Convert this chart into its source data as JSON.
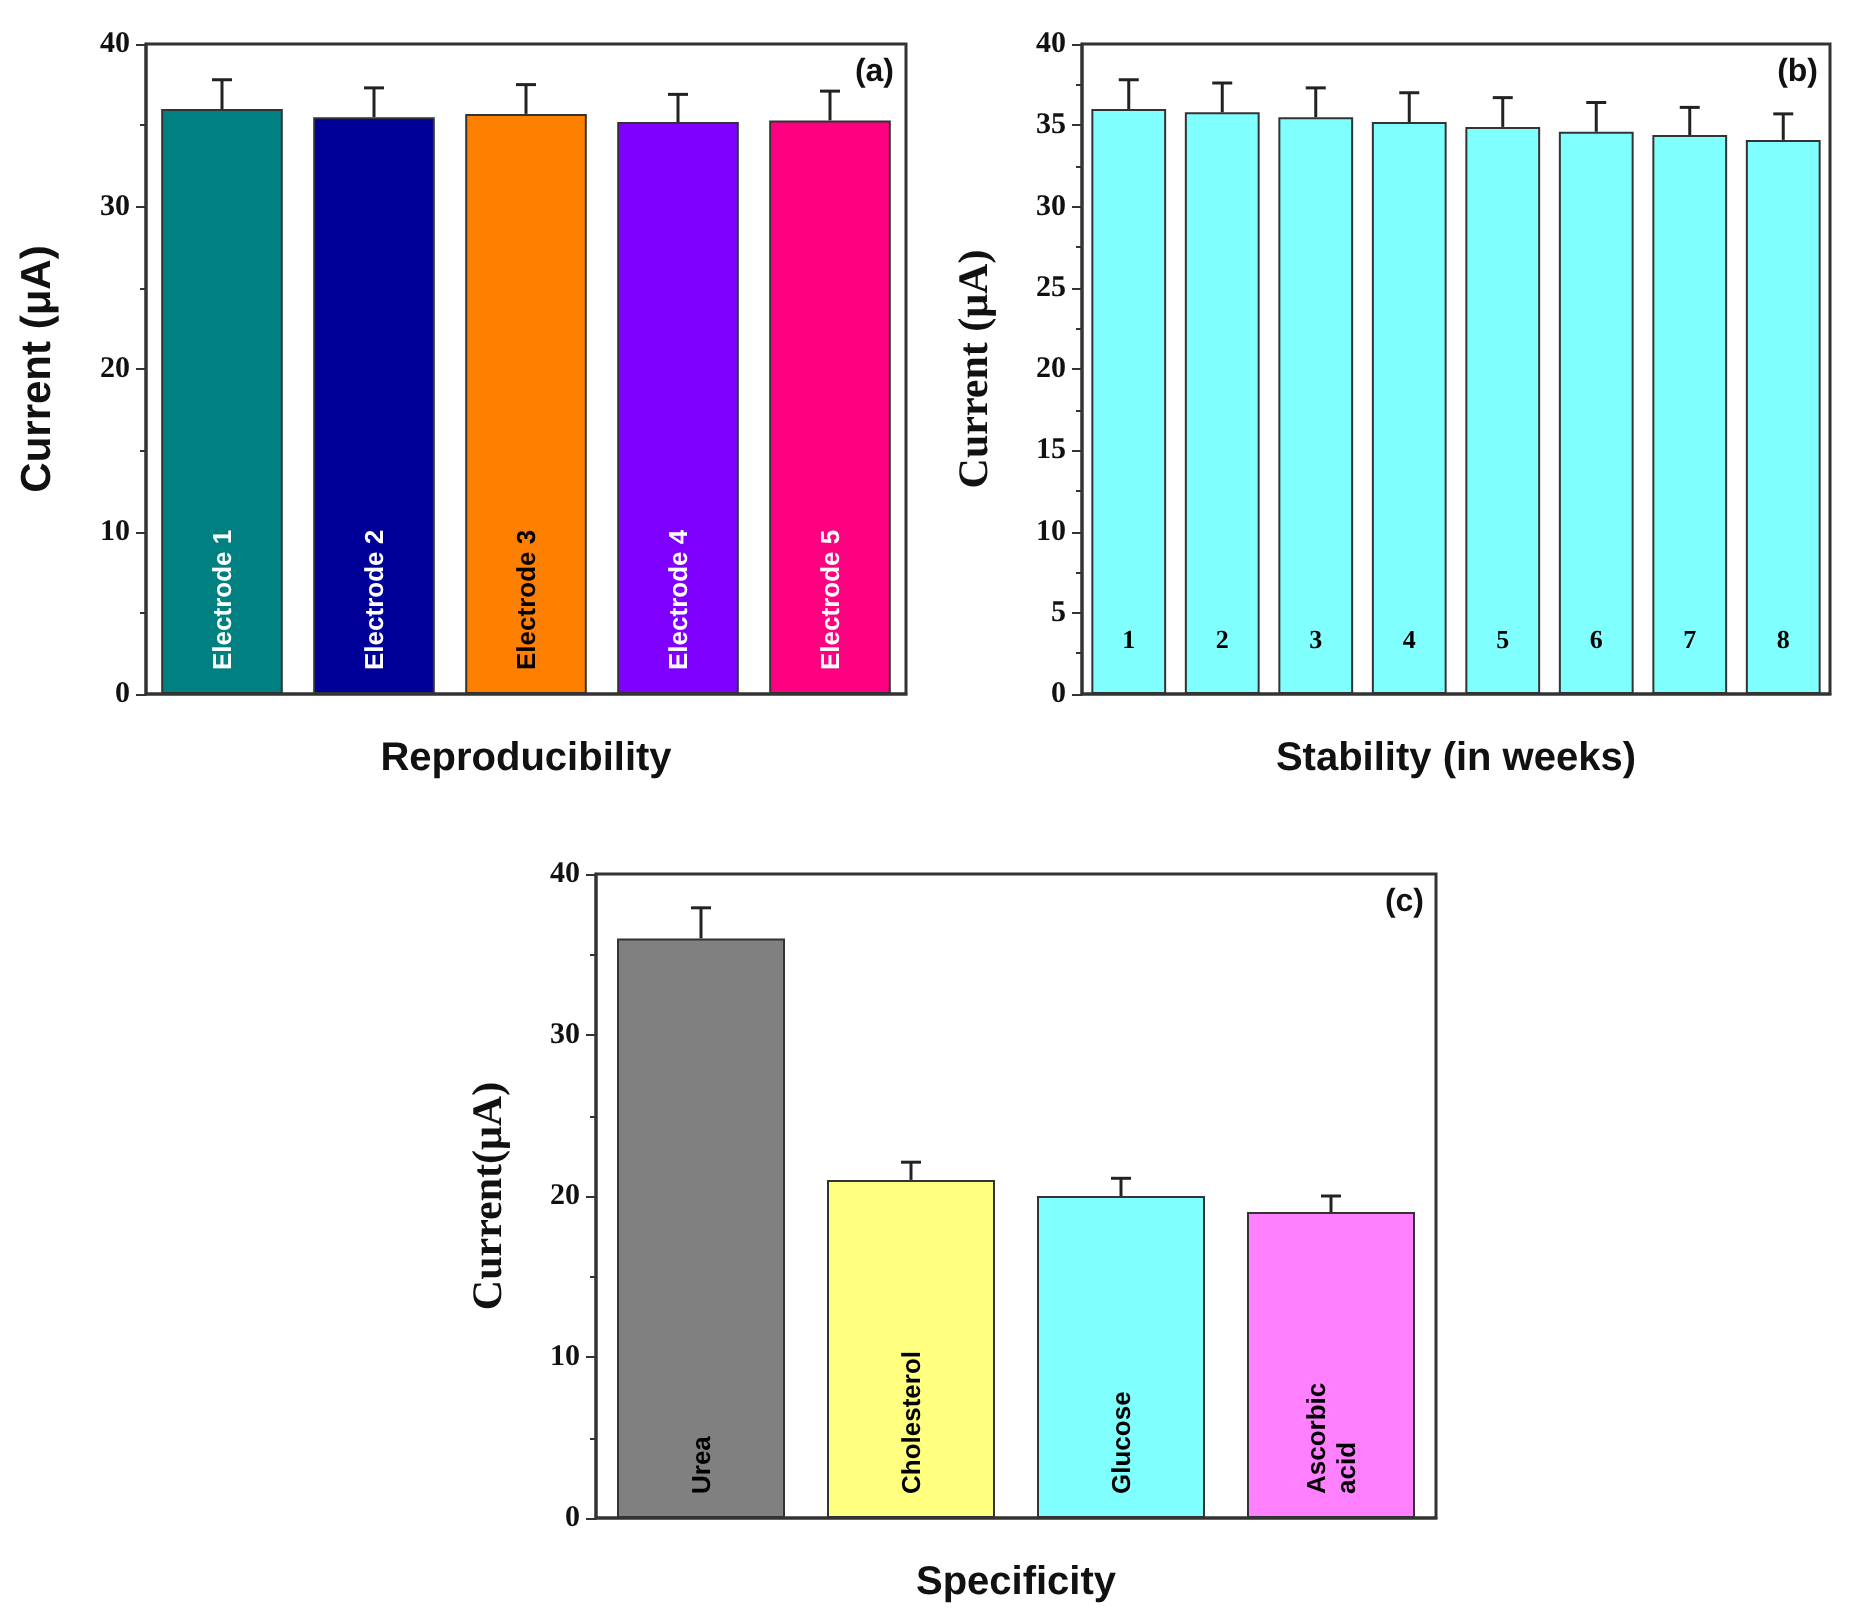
{
  "chart_data": [
    {
      "type": "bar",
      "xlabel": "Reproducibility",
      "ylabel": "Current (μA)",
      "annotations": [
        "(a)"
      ],
      "categories": [
        "Electrode 1",
        "Electrode 2",
        "Electrode 3",
        "Electrode 4",
        "Electrode 5"
      ],
      "values": [
        36,
        35.5,
        35.7,
        35.2,
        35.3
      ],
      "colors": [
        "#008080",
        "#000099",
        "#ff8000",
        "#8000ff",
        "#ff0080"
      ],
      "errors": [
        [
          36,
          37.8
        ],
        [
          35.5,
          37.3
        ],
        [
          35.7,
          37.5
        ],
        [
          35.2,
          36.9
        ],
        [
          35.3,
          37.1
        ]
      ],
      "ylim": [
        0,
        40
      ],
      "yticks": [
        0,
        10,
        20,
        30,
        40
      ]
    },
    {
      "type": "bar",
      "xlabel": "Stability (in weeks)",
      "ylabel": "Current (μA)",
      "annotations": [
        "(b)"
      ],
      "categories": [
        "1",
        "2",
        "3",
        "4",
        "5",
        "6",
        "7",
        "8"
      ],
      "values": [
        36,
        35.8,
        35.5,
        35.2,
        34.9,
        34.6,
        34.4,
        34.1
      ],
      "color": "#80ffff",
      "errors": [
        [
          36,
          37.8
        ],
        [
          35.8,
          37.6
        ],
        [
          35.5,
          37.3
        ],
        [
          35.2,
          37.0
        ],
        [
          34.9,
          36.7
        ],
        [
          34.6,
          36.4
        ],
        [
          34.4,
          36.1
        ],
        [
          34.1,
          35.7
        ]
      ],
      "ylim": [
        0,
        40
      ],
      "yticks": [
        0,
        5,
        10,
        15,
        20,
        25,
        30,
        35,
        40
      ]
    },
    {
      "type": "bar",
      "xlabel": "Specificity",
      "ylabel": "Current(μA)",
      "annotations": [
        "(c)"
      ],
      "categories": [
        "Urea",
        "Cholesterol",
        "Glucose",
        "Ascorbic acid"
      ],
      "values": [
        36,
        21,
        20,
        19
      ],
      "colors": [
        "#808080",
        "#ffff80",
        "#80ffff",
        "#ff80ff"
      ],
      "errors": [
        [
          36,
          37.9
        ],
        [
          21,
          22.1
        ],
        [
          20,
          21.1
        ],
        [
          19,
          20.0
        ]
      ],
      "ylim": [
        0,
        40
      ],
      "yticks": [
        0,
        10,
        20,
        30,
        40
      ]
    }
  ]
}
